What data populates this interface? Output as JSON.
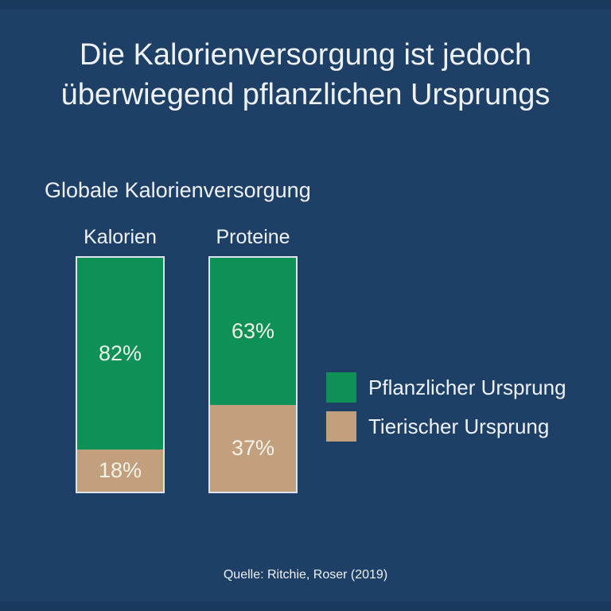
{
  "header": {
    "title": "Die Kalorienversorgung ist jedoch überwiegend pflanzlichen Ursprungs"
  },
  "source": {
    "text": "Quelle: Ritchie, Roser (2019)"
  },
  "colors": {
    "background": "#1e3f66",
    "edge_strip": "#1a395e",
    "text": "#eef2f7",
    "bar_border": "#dde4ec",
    "plant_green": "#0d9156",
    "animal_tan": "#c2a07e"
  },
  "chart_data": {
    "type": "bar",
    "stacked": true,
    "title": "Globale Kalorienversorgung",
    "categories": [
      "Kalorien",
      "Proteine"
    ],
    "series": [
      {
        "name": "Pflanzlicher Ursprung",
        "values": [
          82,
          63
        ],
        "color": "#0d9156",
        "stack_position": "top"
      },
      {
        "name": "Tierischer Ursprung",
        "values": [
          18,
          37
        ],
        "color": "#c2a07e",
        "stack_position": "bottom"
      }
    ],
    "value_labels": [
      [
        "82%",
        "18%"
      ],
      [
        "63%",
        "37%"
      ]
    ],
    "value_suffix": "%",
    "ylim": [
      0,
      100
    ],
    "grid": false,
    "axes_shown": false,
    "legend_position": "right"
  }
}
